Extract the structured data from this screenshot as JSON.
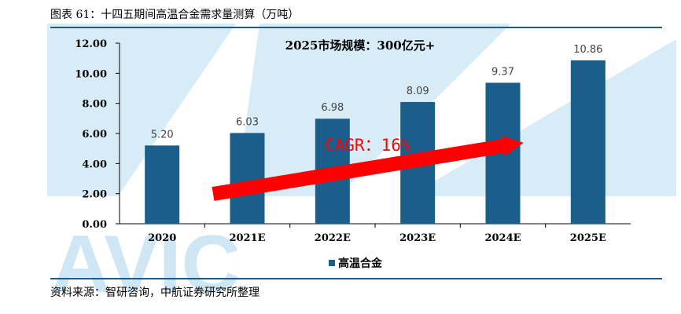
{
  "figure_title": "图表 61：十四五期间高温合金需求量测算（万吨）",
  "source": "资料来源：智研咨询，中航证券研究所整理",
  "watermark": "AVIC",
  "colors": {
    "bar": "#1b5e8c",
    "arrow": "#ff0000",
    "rule": "#1c5a8a",
    "watermark": "#cfe6f5"
  },
  "chart_data": {
    "type": "bar",
    "categories": [
      "2020",
      "2021E",
      "2022E",
      "2023E",
      "2024E",
      "2025E"
    ],
    "series": [
      {
        "name": "高温合金",
        "values": [
          5.2,
          6.03,
          6.98,
          8.09,
          9.37,
          10.86
        ],
        "value_labels": [
          "5.20",
          "6.03",
          "6.98",
          "8.09",
          "9.37",
          "10.86"
        ]
      }
    ],
    "ylim": [
      0,
      12
    ],
    "yticks": [
      "0.00",
      "2.00",
      "4.00",
      "6.00",
      "8.00",
      "10.00",
      "12.00"
    ],
    "xlabel": "",
    "ylabel": "",
    "grid": false,
    "legend_position": "bottom",
    "annotations": {
      "market": "2025市场规模：300亿元+",
      "cagr": "CAGR：16%"
    }
  }
}
